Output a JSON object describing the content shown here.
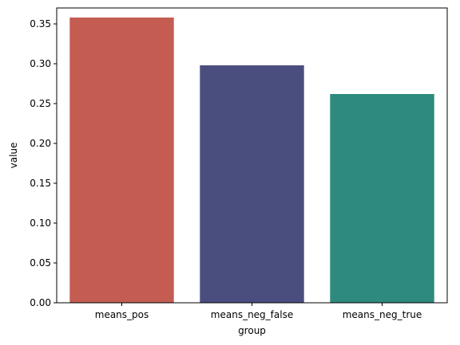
{
  "chart_data": {
    "type": "bar",
    "categories": [
      "means_pos",
      "means_neg_false",
      "means_neg_true"
    ],
    "values": [
      0.358,
      0.298,
      0.262
    ],
    "colors": [
      "#c45c52",
      "#4a4e7f",
      "#2e8a7e"
    ],
    "title": "",
    "xlabel": "group",
    "ylabel": "value",
    "ylim": [
      0,
      0.37
    ],
    "yticks": [
      0.0,
      0.05,
      0.1,
      0.15,
      0.2,
      0.25,
      0.3,
      0.35
    ],
    "ytick_labels": [
      "0.00",
      "0.05",
      "0.10",
      "0.15",
      "0.20",
      "0.25",
      "0.30",
      "0.35"
    ],
    "grid": false,
    "legend": "none"
  }
}
